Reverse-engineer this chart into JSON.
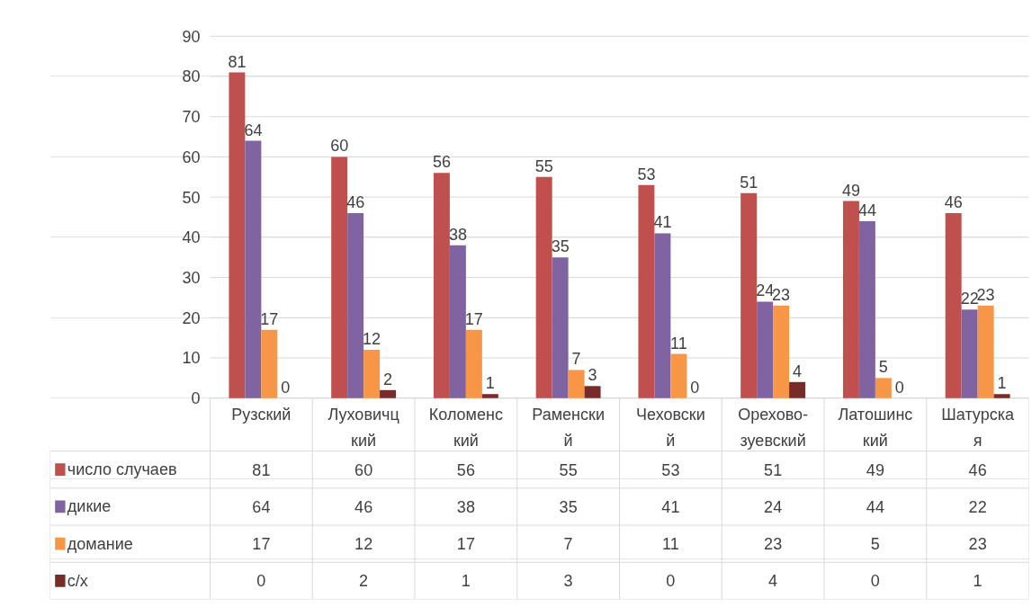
{
  "chart_data": {
    "type": "bar",
    "categories": [
      "Рузский",
      "Луховичцкий",
      "Коломенский",
      "Раменский",
      "Чеховский",
      "Орехово-зуевский",
      "Латошинский",
      "Шатурская"
    ],
    "series": [
      {
        "name": "число случаев",
        "color": "#c0504d",
        "values": [
          81,
          60,
          56,
          55,
          53,
          51,
          49,
          46
        ],
        "value_labels": [
          "81",
          "60",
          "56",
          "55",
          "53",
          "51",
          "49",
          "46"
        ]
      },
      {
        "name": "дикие",
        "color": "#8064a2",
        "values": [
          64,
          46,
          38,
          35,
          41,
          24,
          44,
          22
        ],
        "value_labels": [
          "64",
          "46",
          "38",
          "35",
          "41",
          "24",
          "44",
          "22"
        ]
      },
      {
        "name": "домание",
        "color": "#f79646",
        "values": [
          17,
          12,
          17,
          7,
          11,
          23,
          5,
          23
        ],
        "value_labels": [
          "17",
          "12",
          "17",
          "7",
          "11",
          "23",
          "5",
          "23"
        ]
      },
      {
        "name": "с/х",
        "color": "#772c2a",
        "values": [
          0,
          2,
          1,
          3,
          0,
          4,
          0,
          1
        ],
        "value_labels": [
          "0",
          "2",
          "1",
          "3",
          "0",
          "4",
          "0",
          "1"
        ]
      }
    ],
    "ylim": [
      0,
      90
    ],
    "yticks": [
      0,
      10,
      20,
      30,
      40,
      50,
      60,
      70,
      80,
      90
    ],
    "grid": "y",
    "legend": "bottom left",
    "data_labels": true
  }
}
